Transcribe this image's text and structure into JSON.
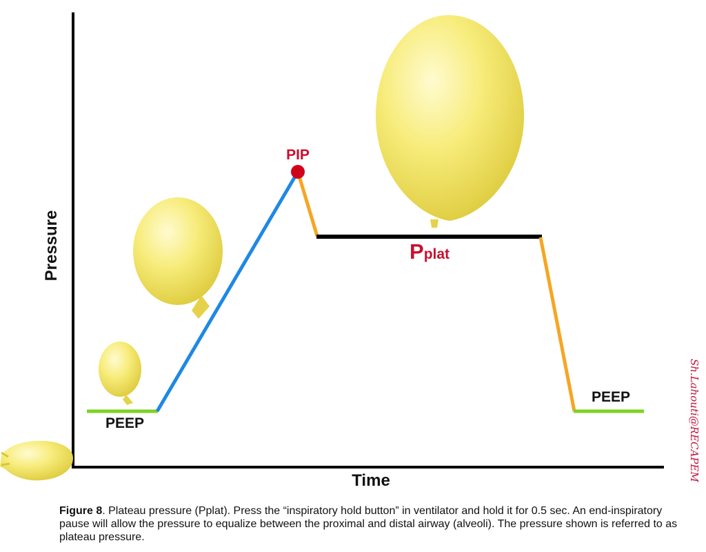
{
  "axes": {
    "y_label": "Pressure",
    "x_label": "Time"
  },
  "labels": {
    "peep_left": "PEEP",
    "peep_right": "PEEP",
    "pip": "PIP",
    "pplat_main": "P",
    "pplat_sub": "plat"
  },
  "colors": {
    "axis": "#000000",
    "peep": "#7ed321",
    "inspiration": "#1e88e5",
    "transition": "#f5a623",
    "plateau": "#000000",
    "pip_marker": "#d0021b",
    "label_red": "#c8102e",
    "balloon": "#f7ec7a"
  },
  "caption": {
    "figure": "Figure 8",
    "text": ". Plateau pressure (Pplat). Press the “inspiratory hold button” in ventilator and hold it for 0.5 sec. An end-inspiratory pause will allow the pressure to equalize between the proximal and distal airway (alveoli). The pressure shown is referred to as plateau pressure."
  },
  "watermark": "Sh.Lahouti@RECAPEM",
  "illustrations": [
    "deflated-balloon",
    "small-balloon",
    "medium-balloon",
    "large-balloon"
  ]
}
